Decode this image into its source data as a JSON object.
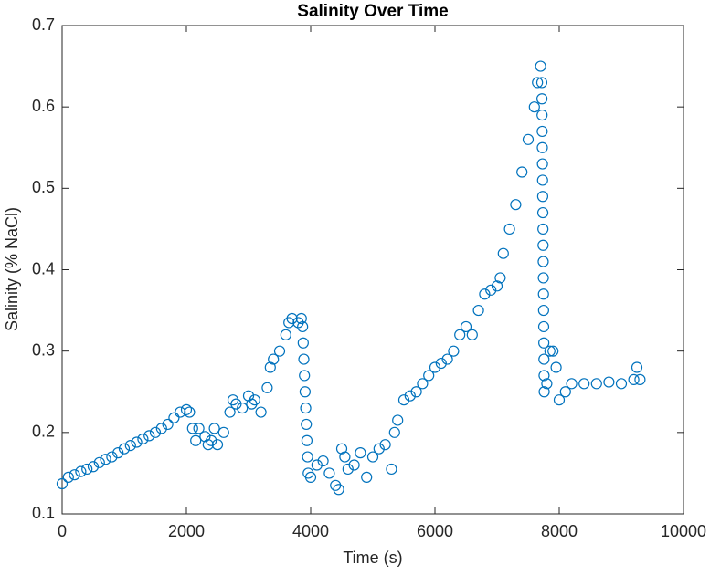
{
  "chart_data": {
    "type": "scatter",
    "title": "Salinity Over Time",
    "x_label": "Time (s)",
    "y_label": "Salinity (% NaCl)",
    "xlim": [
      0,
      10000
    ],
    "ylim": [
      0.1,
      0.7
    ],
    "xticks": [
      0,
      2000,
      4000,
      6000,
      8000,
      10000
    ],
    "yticks": [
      0.1,
      0.2,
      0.3,
      0.4,
      0.5,
      0.6,
      0.7
    ],
    "color": "#0072bd",
    "grid": false,
    "x": [
      0,
      100,
      200,
      300,
      400,
      500,
      600,
      700,
      800,
      900,
      1000,
      1100,
      1200,
      1300,
      1400,
      1500,
      1600,
      1700,
      1800,
      1900,
      2000,
      2050,
      2100,
      2150,
      2200,
      2300,
      2350,
      2400,
      2450,
      2500,
      2600,
      2700,
      2750,
      2800,
      2900,
      3000,
      3050,
      3100,
      3200,
      3300,
      3350,
      3400,
      3500,
      3600,
      3650,
      3700,
      3800,
      3850,
      3870,
      3880,
      3890,
      3900,
      3910,
      3920,
      3930,
      3940,
      3950,
      3960,
      4000,
      4100,
      4200,
      4300,
      4400,
      4450,
      4500,
      4550,
      4600,
      4700,
      4800,
      4900,
      5000,
      5100,
      5200,
      5300,
      5350,
      5400,
      5500,
      5600,
      5700,
      5800,
      5900,
      6000,
      6100,
      6200,
      6300,
      6400,
      6500,
      6600,
      6700,
      6800,
      6900,
      7000,
      7050,
      7100,
      7200,
      7300,
      7400,
      7500,
      7600,
      7650,
      7700,
      7720,
      7722,
      7724,
      7726,
      7728,
      7730,
      7732,
      7734,
      7736,
      7738,
      7740,
      7742,
      7744,
      7746,
      7748,
      7750,
      7752,
      7754,
      7756,
      7758,
      7800,
      7850,
      7900,
      7950,
      8000,
      8100,
      8200,
      8400,
      8600,
      8800,
      9000,
      9200,
      9250,
      9300
    ],
    "values": [
      0.137,
      0.145,
      0.148,
      0.152,
      0.155,
      0.158,
      0.163,
      0.167,
      0.17,
      0.175,
      0.18,
      0.184,
      0.188,
      0.192,
      0.196,
      0.2,
      0.205,
      0.21,
      0.218,
      0.225,
      0.228,
      0.225,
      0.205,
      0.19,
      0.205,
      0.195,
      0.185,
      0.19,
      0.205,
      0.185,
      0.2,
      0.225,
      0.24,
      0.235,
      0.23,
      0.245,
      0.235,
      0.24,
      0.225,
      0.255,
      0.28,
      0.29,
      0.3,
      0.32,
      0.335,
      0.34,
      0.335,
      0.34,
      0.33,
      0.31,
      0.29,
      0.27,
      0.25,
      0.23,
      0.21,
      0.19,
      0.17,
      0.15,
      0.145,
      0.16,
      0.165,
      0.15,
      0.135,
      0.13,
      0.18,
      0.17,
      0.155,
      0.16,
      0.175,
      0.145,
      0.17,
      0.18,
      0.185,
      0.155,
      0.2,
      0.215,
      0.24,
      0.245,
      0.25,
      0.26,
      0.27,
      0.28,
      0.285,
      0.29,
      0.3,
      0.32,
      0.33,
      0.32,
      0.35,
      0.37,
      0.375,
      0.38,
      0.39,
      0.42,
      0.45,
      0.48,
      0.52,
      0.56,
      0.6,
      0.63,
      0.65,
      0.63,
      0.61,
      0.59,
      0.57,
      0.55,
      0.53,
      0.51,
      0.49,
      0.47,
      0.45,
      0.43,
      0.41,
      0.39,
      0.37,
      0.35,
      0.33,
      0.31,
      0.29,
      0.27,
      0.25,
      0.26,
      0.3,
      0.3,
      0.28,
      0.24,
      0.25,
      0.26,
      0.26,
      0.26,
      0.262,
      0.26,
      0.265,
      0.28,
      0.265
    ]
  }
}
